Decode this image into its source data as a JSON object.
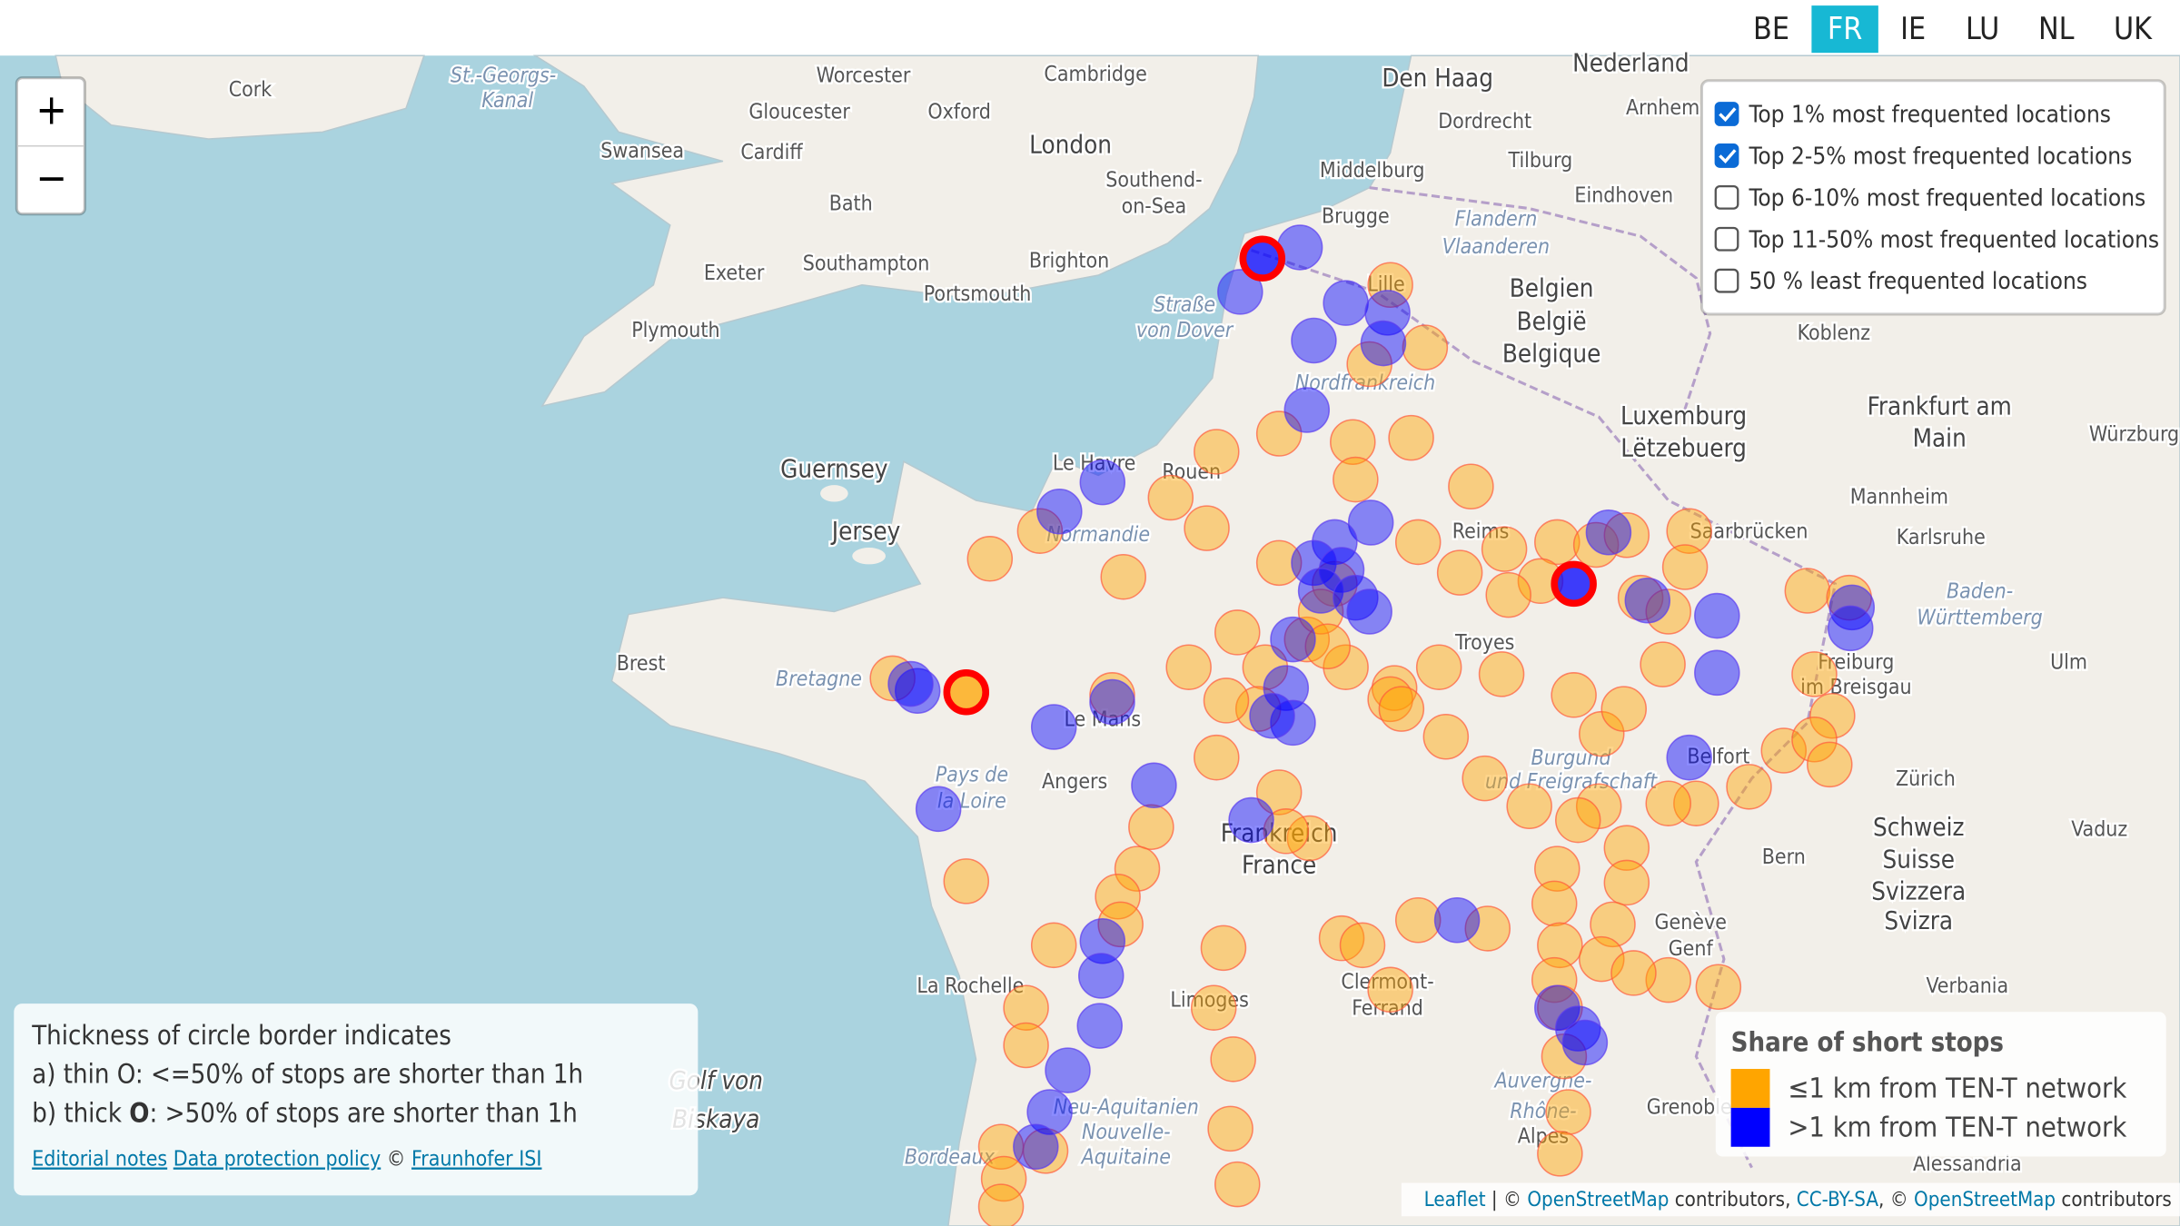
{
  "tabs": [
    {
      "label": "BE",
      "active": false
    },
    {
      "label": "FR",
      "active": true
    },
    {
      "label": "IE",
      "active": false
    },
    {
      "label": "LU",
      "active": false
    },
    {
      "label": "NL",
      "active": false
    },
    {
      "label": "UK",
      "active": false
    }
  ],
  "zoom": [
    "+",
    "−"
  ],
  "layers": [
    {
      "label": "Top 1% most frequented locations",
      "checked": true
    },
    {
      "label": "Top 2-5% most frequented locations",
      "checked": true
    },
    {
      "label": "Top 6-10% most frequented locations",
      "checked": false
    },
    {
      "label": "Top 11-50% most frequented locations",
      "checked": false
    },
    {
      "label": "50 % least frequented locations",
      "checked": false
    }
  ],
  "info": {
    "lines": [
      "Thickness of circle border indicates",
      "a) thin O: <=50% of stops are shorter than 1h"
    ],
    "line3": {
      "pre": "b) thick ",
      "bold": "O",
      "post": ": >50% of stops are shorter than 1h"
    },
    "links": [
      "Editorial notes",
      "Data protection policy"
    ],
    "copyright": "©",
    "org": "Fraunhofer ISI"
  },
  "legend": {
    "title": "Share of short stops",
    "items": [
      {
        "label": "≤1 km from TEN-T network",
        "color": "#ffa500"
      },
      {
        "label": ">1 km from TEN-T network",
        "color": "#0000ff"
      }
    ]
  },
  "attribution": [
    {
      "text": "Leaflet",
      "link": true
    },
    {
      "text": " | © ",
      "link": false
    },
    {
      "text": "OpenStreetMap",
      "link": true
    },
    {
      "text": " contributors, ",
      "link": false
    },
    {
      "text": "CC-BY-SA",
      "link": true
    },
    {
      "text": ", © ",
      "link": false
    },
    {
      "text": "OpenStreetMap",
      "link": true
    },
    {
      "text": " contributors",
      "link": false
    }
  ],
  "map_labels": [
    "Cork",
    "St.-Georgs-",
    "Kanal",
    "Worcester",
    "Cambridge",
    "Den Haag",
    "Nederland",
    "Gloucester",
    "Oxford",
    "Swansea",
    "Cardiff",
    "London",
    "Dordrecht",
    "Arnhem",
    "Southend-",
    "on-Sea",
    "Middelburg",
    "Tilburg",
    "Eindhoven",
    "Bath",
    "Brugge",
    "Flandern",
    "Vlaanderen",
    "Exeter",
    "Southampton",
    "Brighton",
    "Portsmouth",
    "Plymouth",
    "Straße",
    "von Dover",
    "Belgien",
    "België",
    "Belgique",
    "Koblenz",
    "Lille",
    "Nordfrankreich",
    "Guernsey",
    "Le Havre",
    "Rouen",
    "Luxemburg",
    "Lëtzebuerg",
    "Frankfurt am",
    "Main",
    "Würzburg",
    "Jersey",
    "Normandie",
    "Reims",
    "Saarbrücken",
    "Mannheim",
    "Karlsruhe",
    "Brest",
    "Bretagne",
    "Troyes",
    "Baden-",
    "Württemberg",
    "Freiburg",
    "im Breisgau",
    "Ulm",
    "Le Mans",
    "Pays de",
    "la Loire",
    "Angers",
    "Burgund",
    "und Freigrafschaft",
    "Belfort",
    "Zürich",
    "Frankreich",
    "France",
    "Schweiz",
    "Suisse",
    "Svizzera",
    "Svizra",
    "Vaduz",
    "Bern",
    "Genève",
    "Genf",
    "La Rochelle",
    "Limoges",
    "Clermont-",
    "Ferrand",
    "Verbania",
    "Golf von",
    "Biskaya",
    "Neu-Aquitanien",
    "Nouvelle-",
    "Aquitaine",
    "Bordeaux",
    "Auvergne-",
    "Rhône-",
    "Alpes",
    "Grenoble",
    "Alessandria"
  ]
}
